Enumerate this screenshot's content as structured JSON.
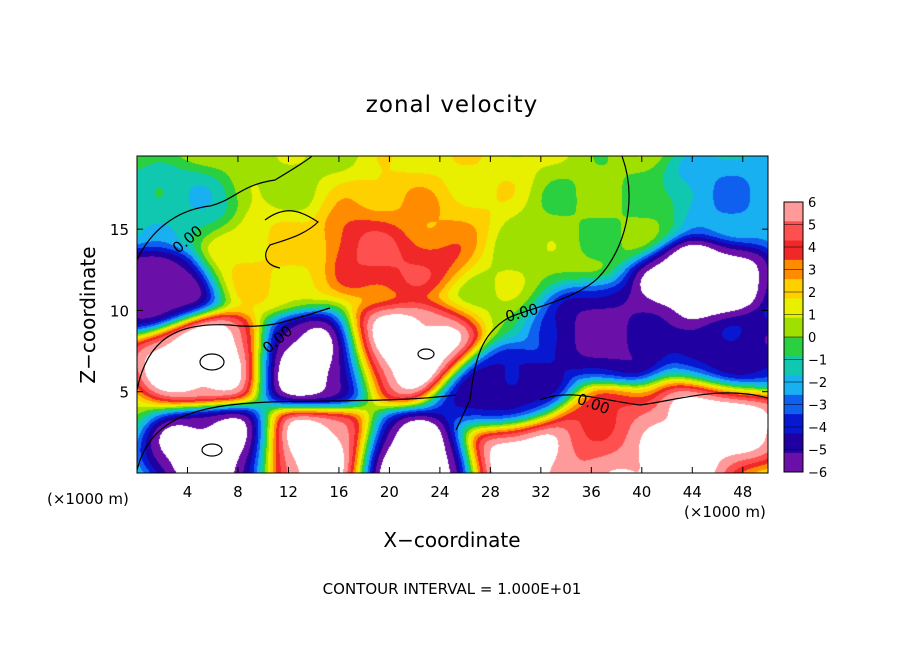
{
  "chart_data": {
    "type": "heatmap",
    "title": "zonal velocity",
    "xlabel": "X−coordinate",
    "ylabel": "Z−coordinate",
    "x_unit_left": "(×1000 m)",
    "x_unit_right": "(×1000 m)",
    "footer": "CONTOUR INTERVAL = 1.000E+01",
    "xlim": [
      0,
      50
    ],
    "ylim": [
      0,
      19.5
    ],
    "x_ticks": [
      4,
      8,
      12,
      16,
      20,
      24,
      28,
      32,
      36,
      40,
      44,
      48
    ],
    "y_ticks": [
      5,
      10,
      15
    ],
    "x_tick_labels": [
      "4",
      "8",
      "12",
      "16",
      "20",
      "24",
      "28",
      "32",
      "36",
      "40",
      "44",
      "48"
    ],
    "y_tick_labels": [
      "5",
      "10",
      "15"
    ],
    "contour_labels": [
      "0.00",
      "0.00",
      "0.00",
      "0.00"
    ],
    "colorbar": {
      "range": [
        -6,
        6
      ],
      "levels": [
        6,
        5,
        4,
        3,
        2,
        1,
        0,
        -1,
        -2,
        -3,
        -4,
        -5,
        -6
      ],
      "labels": [
        "6",
        "5",
        "4",
        "3",
        "2",
        "1",
        "0",
        "−1",
        "−2",
        "−3",
        "−4",
        "−5",
        "−6"
      ],
      "colors": [
        "#ff9a9a",
        "#ff5050",
        "#f02828",
        "#ff8c00",
        "#ffd000",
        "#e8f000",
        "#a0e000",
        "#2ad040",
        "#10c8b0",
        "#18b0f0",
        "#1060f0",
        "#0818d0",
        "#2000a0",
        "#6a10a8"
      ]
    },
    "features": [
      {
        "x": 20,
        "z": 13.8,
        "value": 4.5
      },
      {
        "x": 22,
        "z": 16,
        "value": 2.5
      },
      {
        "x": 25,
        "z": 19,
        "value": 1.5
      },
      {
        "x": 5.5,
        "z": 7,
        "value": 7
      },
      {
        "x": 14,
        "z": 6.8,
        "value": -7
      },
      {
        "x": 21,
        "z": 7.4,
        "value": 7
      },
      {
        "x": 6.5,
        "z": 1.3,
        "value": -7
      },
      {
        "x": 14,
        "z": 1.2,
        "value": 7
      },
      {
        "x": 22,
        "z": 0.8,
        "value": -7
      },
      {
        "x": 30.5,
        "z": 1.2,
        "value": 7
      },
      {
        "x": 37,
        "z": 2.3,
        "value": 4.5
      },
      {
        "x": 46.5,
        "z": 3.5,
        "value": 7
      },
      {
        "x": 41.5,
        "z": 0.8,
        "value": 7
      },
      {
        "x": 45,
        "z": 11.8,
        "value": -7
      },
      {
        "x": 37.5,
        "z": 8.6,
        "value": -5.5
      },
      {
        "x": 29,
        "z": 4.8,
        "value": -5
      },
      {
        "x": 48,
        "z": 7,
        "value": -5
      },
      {
        "x": 1,
        "z": 11.5,
        "value": -6
      },
      {
        "x": 38,
        "z": 16,
        "value": 0
      },
      {
        "x": 47,
        "z": 17,
        "value": -2.5
      },
      {
        "x": 2,
        "z": 16,
        "value": -1.5
      },
      {
        "x": 10,
        "z": 13,
        "value": 1.8
      }
    ]
  }
}
